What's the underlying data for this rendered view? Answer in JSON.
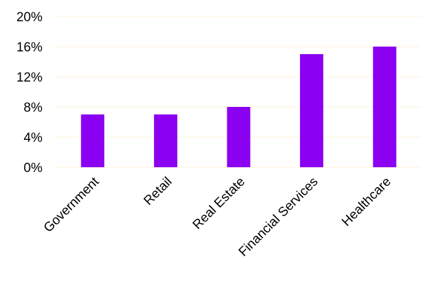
{
  "chart_data": {
    "type": "bar",
    "categories": [
      "Government",
      "Retail",
      "Real Estate",
      "Financial Services",
      "Healthcare"
    ],
    "series": [
      {
        "values": [
          7,
          7,
          8,
          15,
          16
        ]
      }
    ],
    "y_ticks": [
      "0%",
      "4%",
      "8%",
      "12%",
      "16%",
      "20%"
    ],
    "ylim": [
      0,
      20
    ],
    "title": "",
    "xlabel": "",
    "ylabel": "",
    "grid": true,
    "legend": "none",
    "colors": {
      "bar": "#8b00f0",
      "grid": "#fdf3d6"
    }
  }
}
